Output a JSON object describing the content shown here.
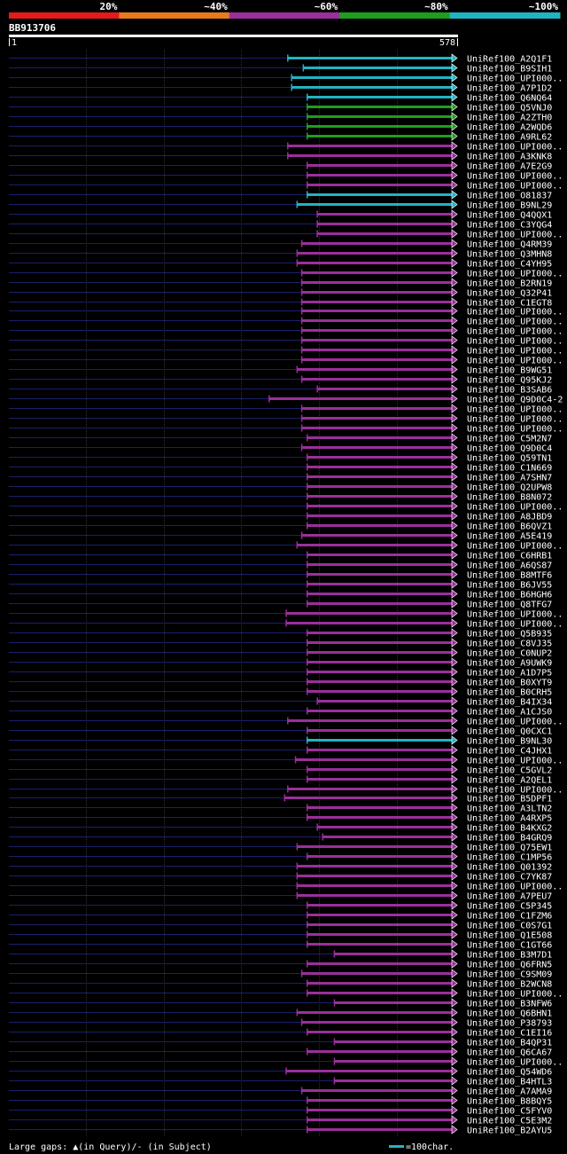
{
  "query_id": "BB913706",
  "scale": {
    "start": "1",
    "end": "578"
  },
  "identity_legend": {
    "labels": [
      "20%",
      "~40%",
      "~60%",
      "~80%",
      "~100%"
    ],
    "colors": [
      "#e41a1c",
      "#e87a1e",
      "#9b2f9b",
      "#1e9e1e",
      "#22b3c3"
    ]
  },
  "footer": {
    "gaps_text": "Large gaps: ▲(in Query)/- (in Subject)",
    "scale_text": "=100char."
  },
  "chart_data": {
    "type": "alignment",
    "query_length": 578,
    "x_range": [
      1,
      578
    ],
    "hits": [
      {
        "name": "UniRef100_A2Q1F1",
        "start": 360,
        "end": 578,
        "identity": "~100%",
        "gaps": []
      },
      {
        "name": "UniRef100_B9SIH1",
        "start": 380,
        "end": 578,
        "identity": "~100%",
        "gaps": []
      },
      {
        "name": "UniRef100_UPI000..",
        "start": 365,
        "end": 578,
        "identity": "~100%",
        "gaps": []
      },
      {
        "name": "UniRef100_A7P1D2",
        "start": 365,
        "end": 578,
        "identity": "~100%",
        "gaps": []
      },
      {
        "name": "UniRef100_Q6NQ64",
        "start": 385,
        "end": 578,
        "identity": "~100%",
        "gaps": []
      },
      {
        "name": "UniRef100_Q5VNJ0",
        "start": 385,
        "end": 578,
        "identity": "~80%",
        "gaps": []
      },
      {
        "name": "UniRef100_A2ZTH0",
        "start": 385,
        "end": 578,
        "identity": "~80%",
        "gaps": []
      },
      {
        "name": "UniRef100_A2WQD6",
        "start": 385,
        "end": 578,
        "identity": "~80%",
        "gaps": []
      },
      {
        "name": "UniRef100_A9RL62",
        "start": 385,
        "end": 578,
        "identity": "~80%",
        "gaps": []
      },
      {
        "name": "UniRef100_UPI000..",
        "start": 360,
        "end": 578,
        "identity": "~60%",
        "gaps": []
      },
      {
        "name": "UniRef100_A3KNK8",
        "start": 360,
        "end": 578,
        "identity": "~60%",
        "gaps": []
      },
      {
        "name": "UniRef100_A7E2G9",
        "start": 385,
        "end": 578,
        "identity": "~60%",
        "gaps": []
      },
      {
        "name": "UniRef100_UPI000..",
        "start": 385,
        "end": 578,
        "identity": "~60%",
        "gaps": []
      },
      {
        "name": "UniRef100_UPI000..",
        "start": 385,
        "end": 578,
        "identity": "~60%",
        "gaps": []
      },
      {
        "name": "UniRef100_O81837",
        "start": 385,
        "end": 578,
        "identity": "~100%",
        "gaps": []
      },
      {
        "name": "UniRef100_B9NL29",
        "start": 372,
        "end": 578,
        "identity": "~100%",
        "gaps": []
      },
      {
        "name": "UniRef100_Q4QQX1",
        "start": 398,
        "end": 578,
        "identity": "~60%",
        "gaps": []
      },
      {
        "name": "UniRef100_C3YQG4",
        "start": 398,
        "end": 578,
        "identity": "~60%",
        "gaps": []
      },
      {
        "name": "UniRef100_UPI000..",
        "start": 398,
        "end": 578,
        "identity": "~60%",
        "gaps": []
      },
      {
        "name": "UniRef100_Q4RM39",
        "start": 378,
        "end": 578,
        "identity": "~60%",
        "gaps": []
      },
      {
        "name": "UniRef100_Q3MHN8",
        "start": 372,
        "end": 578,
        "identity": "~60%",
        "gaps": []
      },
      {
        "name": "UniRef100_C4YH95",
        "start": 372,
        "end": 578,
        "identity": "~60%",
        "gaps": []
      },
      {
        "name": "UniRef100_UPI000..",
        "start": 378,
        "end": 578,
        "identity": "~60%",
        "gaps": []
      },
      {
        "name": "UniRef100_B2RN19",
        "start": 378,
        "end": 578,
        "identity": "~60%",
        "gaps": []
      },
      {
        "name": "UniRef100_Q32P41",
        "start": 378,
        "end": 578,
        "identity": "~60%",
        "gaps": []
      },
      {
        "name": "UniRef100_C1EGT8",
        "start": 378,
        "end": 578,
        "identity": "~60%",
        "gaps": []
      },
      {
        "name": "UniRef100_UPI000..",
        "start": 378,
        "end": 578,
        "identity": "~60%",
        "gaps": []
      },
      {
        "name": "UniRef100_UPI000..",
        "start": 378,
        "end": 578,
        "identity": "~60%",
        "gaps": []
      },
      {
        "name": "UniRef100_UPI000..",
        "start": 378,
        "end": 578,
        "identity": "~60%",
        "gaps": []
      },
      {
        "name": "UniRef100_UPI000..",
        "start": 378,
        "end": 578,
        "identity": "~60%",
        "gaps": []
      },
      {
        "name": "UniRef100_UPI000..",
        "start": 378,
        "end": 578,
        "identity": "~60%",
        "gaps": []
      },
      {
        "name": "UniRef100_UPI000..",
        "start": 378,
        "end": 578,
        "identity": "~60%",
        "gaps": []
      },
      {
        "name": "UniRef100_B9WG51",
        "start": 372,
        "end": 578,
        "identity": "~60%",
        "gaps": []
      },
      {
        "name": "UniRef100_Q95KJ2",
        "start": 378,
        "end": 578,
        "identity": "~60%",
        "gaps": []
      },
      {
        "name": "UniRef100_B3SAB6",
        "start": 398,
        "end": 578,
        "identity": "~60%",
        "gaps": []
      },
      {
        "name": "UniRef100_Q9D0C4-2",
        "start": 336,
        "end": 578,
        "identity": "~60%",
        "gaps": []
      },
      {
        "name": "UniRef100_UPI000..",
        "start": 378,
        "end": 578,
        "identity": "~60%",
        "gaps": []
      },
      {
        "name": "UniRef100_UPI000..",
        "start": 378,
        "end": 578,
        "identity": "~60%",
        "gaps": []
      },
      {
        "name": "UniRef100_UPI000..",
        "start": 378,
        "end": 578,
        "identity": "~60%",
        "gaps": []
      },
      {
        "name": "UniRef100_C5M2N7",
        "start": 385,
        "end": 578,
        "identity": "~60%",
        "gaps": []
      },
      {
        "name": "UniRef100_Q9D0C4",
        "start": 378,
        "end": 578,
        "identity": "~60%",
        "gaps": []
      },
      {
        "name": "UniRef100_Q59TN1",
        "start": 385,
        "end": 578,
        "identity": "~60%",
        "gaps": []
      },
      {
        "name": "UniRef100_C1N669",
        "start": 385,
        "end": 578,
        "identity": "~60%",
        "gaps": []
      },
      {
        "name": "UniRef100_A7SHN7",
        "start": 385,
        "end": 578,
        "identity": "~60%",
        "gaps": []
      },
      {
        "name": "UniRef100_Q2UPW8",
        "start": 385,
        "end": 578,
        "identity": "~60%",
        "gaps": []
      },
      {
        "name": "UniRef100_B8N072",
        "start": 385,
        "end": 578,
        "identity": "~60%",
        "gaps": []
      },
      {
        "name": "UniRef100_UPI000..",
        "start": 385,
        "end": 578,
        "identity": "~60%",
        "gaps": []
      },
      {
        "name": "UniRef100_A8JBD9",
        "start": 385,
        "end": 578,
        "identity": "~60%",
        "gaps": []
      },
      {
        "name": "UniRef100_B6QVZ1",
        "start": 385,
        "end": 578,
        "identity": "~60%",
        "gaps": []
      },
      {
        "name": "UniRef100_A5E419",
        "start": 378,
        "end": 578,
        "identity": "~60%",
        "gaps": []
      },
      {
        "name": "UniRef100_UPI000..",
        "start": 372,
        "end": 578,
        "identity": "~60%",
        "gaps": []
      },
      {
        "name": "UniRef100_C6HRB1",
        "start": 385,
        "end": 578,
        "identity": "~60%",
        "gaps": []
      },
      {
        "name": "UniRef100_A6QS87",
        "start": 385,
        "end": 578,
        "identity": "~60%",
        "gaps": []
      },
      {
        "name": "UniRef100_B8MTF6",
        "start": 385,
        "end": 578,
        "identity": "~60%",
        "gaps": []
      },
      {
        "name": "UniRef100_B6JV55",
        "start": 385,
        "end": 578,
        "identity": "~60%",
        "gaps": []
      },
      {
        "name": "UniRef100_B6HGH6",
        "start": 385,
        "end": 578,
        "identity": "~60%",
        "gaps": []
      },
      {
        "name": "UniRef100_Q8TFG7",
        "start": 385,
        "end": 578,
        "identity": "~60%",
        "gaps": []
      },
      {
        "name": "UniRef100_UPI000..",
        "start": 358,
        "end": 578,
        "identity": "~60%",
        "gaps": []
      },
      {
        "name": "UniRef100_UPI000..",
        "start": 358,
        "end": 578,
        "identity": "~60%",
        "gaps": []
      },
      {
        "name": "UniRef100_Q5B935",
        "start": 385,
        "end": 578,
        "identity": "~60%",
        "gaps": []
      },
      {
        "name": "UniRef100_C8VJ35",
        "start": 385,
        "end": 578,
        "identity": "~60%",
        "gaps": []
      },
      {
        "name": "UniRef100_C0NUP2",
        "start": 385,
        "end": 578,
        "identity": "~60%",
        "gaps": []
      },
      {
        "name": "UniRef100_A9UWK9",
        "start": 385,
        "end": 578,
        "identity": "~60%",
        "gaps": []
      },
      {
        "name": "UniRef100_A1D7P5",
        "start": 385,
        "end": 578,
        "identity": "~60%",
        "gaps": []
      },
      {
        "name": "UniRef100_B0XYT9",
        "start": 385,
        "end": 578,
        "identity": "~60%",
        "gaps": []
      },
      {
        "name": "UniRef100_B0CRH5",
        "start": 385,
        "end": 578,
        "identity": "~60%",
        "gaps": []
      },
      {
        "name": "UniRef100_B4IX34",
        "start": 398,
        "end": 578,
        "identity": "~60%",
        "gaps": []
      },
      {
        "name": "UniRef100_A1CJS0",
        "start": 385,
        "end": 578,
        "identity": "~60%",
        "gaps": []
      },
      {
        "name": "UniRef100_UPI000..",
        "start": 360,
        "end": 578,
        "identity": "~60%",
        "gaps": []
      },
      {
        "name": "UniRef100_Q0CXC1",
        "start": 385,
        "end": 578,
        "identity": "~60%",
        "gaps": []
      },
      {
        "name": "UniRef100_B9NL30",
        "start": 385,
        "end": 578,
        "identity": "~100%",
        "gaps": []
      },
      {
        "name": "UniRef100_C4JHX1",
        "start": 385,
        "end": 578,
        "identity": "~60%",
        "gaps": []
      },
      {
        "name": "UniRef100_UPI000..",
        "start": 370,
        "end": 578,
        "identity": "~60%",
        "gaps": []
      },
      {
        "name": "UniRef100_C5GVL2",
        "start": 385,
        "end": 578,
        "identity": "~60%",
        "gaps": []
      },
      {
        "name": "UniRef100_A2QEL1",
        "start": 385,
        "end": 578,
        "identity": "~60%",
        "gaps": []
      },
      {
        "name": "UniRef100_UPI000..",
        "start": 360,
        "end": 578,
        "identity": "~60%",
        "gaps": []
      },
      {
        "name": "UniRef100_B5DPF1",
        "start": 356,
        "end": 578,
        "identity": "~60%",
        "gaps": []
      },
      {
        "name": "UniRef100_A3LTN2",
        "start": 385,
        "end": 578,
        "identity": "~60%",
        "gaps": []
      },
      {
        "name": "UniRef100_A4RXP5",
        "start": 385,
        "end": 578,
        "identity": "~60%",
        "gaps": []
      },
      {
        "name": "UniRef100_B4KXG2",
        "start": 398,
        "end": 578,
        "identity": "~60%",
        "gaps": []
      },
      {
        "name": "UniRef100_B4GRQ9",
        "start": 405,
        "end": 578,
        "identity": "~60%",
        "gaps": []
      },
      {
        "name": "UniRef100_Q75EW1",
        "start": 372,
        "end": 578,
        "identity": "~60%",
        "gaps": []
      },
      {
        "name": "UniRef100_C1MP56",
        "start": 385,
        "end": 578,
        "identity": "~60%",
        "gaps": []
      },
      {
        "name": "UniRef100_Q01392",
        "start": 372,
        "end": 578,
        "identity": "~60%",
        "gaps": []
      },
      {
        "name": "UniRef100_C7YK87",
        "start": 372,
        "end": 578,
        "identity": "~60%",
        "gaps": []
      },
      {
        "name": "UniRef100_UPI000..",
        "start": 372,
        "end": 578,
        "identity": "~60%",
        "gaps": []
      },
      {
        "name": "UniRef100_A7PEU7",
        "start": 372,
        "end": 578,
        "identity": "~60%",
        "gaps": []
      },
      {
        "name": "UniRef100_C5P345",
        "start": 385,
        "end": 578,
        "identity": "~60%",
        "gaps": []
      },
      {
        "name": "UniRef100_C1FZM6",
        "start": 385,
        "end": 578,
        "identity": "~60%",
        "gaps": []
      },
      {
        "name": "UniRef100_C0S7G1",
        "start": 385,
        "end": 578,
        "identity": "~60%",
        "gaps": []
      },
      {
        "name": "UniRef100_Q1E508",
        "start": 385,
        "end": 578,
        "identity": "~60%",
        "gaps": []
      },
      {
        "name": "UniRef100_C1GT66",
        "start": 385,
        "end": 578,
        "identity": "~60%",
        "gaps": []
      },
      {
        "name": "UniRef100_B3M7D1",
        "start": 420,
        "end": 578,
        "identity": "~60%",
        "gaps": []
      },
      {
        "name": "UniRef100_Q6FRN5",
        "start": 385,
        "end": 578,
        "identity": "~60%",
        "gaps": []
      },
      {
        "name": "UniRef100_C9SM09",
        "start": 378,
        "end": 578,
        "identity": "~60%",
        "gaps": []
      },
      {
        "name": "UniRef100_B2WCN8",
        "start": 385,
        "end": 578,
        "identity": "~60%",
        "gaps": []
      },
      {
        "name": "UniRef100_UPI000..",
        "start": 385,
        "end": 578,
        "identity": "~60%",
        "gaps": []
      },
      {
        "name": "UniRef100_B3NFW6",
        "start": 420,
        "end": 578,
        "identity": "~60%",
        "gaps": []
      },
      {
        "name": "UniRef100_Q6BHN1",
        "start": 372,
        "end": 578,
        "identity": "~60%",
        "gaps": []
      },
      {
        "name": "UniRef100_P38793",
        "start": 378,
        "end": 578,
        "identity": "~60%",
        "gaps": []
      },
      {
        "name": "UniRef100_C1EI16",
        "start": 385,
        "end": 578,
        "identity": "~60%",
        "gaps": []
      },
      {
        "name": "UniRef100_B4QP31",
        "start": 420,
        "end": 578,
        "identity": "~60%",
        "gaps": []
      },
      {
        "name": "UniRef100_Q6CA67",
        "start": 385,
        "end": 578,
        "identity": "~60%",
        "gaps": []
      },
      {
        "name": "UniRef100_UPI000..",
        "start": 420,
        "end": 578,
        "identity": "~60%",
        "gaps": []
      },
      {
        "name": "UniRef100_Q54WD6",
        "start": 358,
        "end": 578,
        "identity": "~60%",
        "gaps": []
      },
      {
        "name": "UniRef100_B4HTL3",
        "start": 420,
        "end": 578,
        "identity": "~60%",
        "gaps": []
      },
      {
        "name": "UniRef100_A7AMA9",
        "start": 378,
        "end": 578,
        "identity": "~60%",
        "gaps": []
      },
      {
        "name": "UniRef100_B8BQY5",
        "start": 385,
        "end": 578,
        "identity": "~60%",
        "gaps": []
      },
      {
        "name": "UniRef100_C5FYV0",
        "start": 385,
        "end": 578,
        "identity": "~60%",
        "gaps": []
      },
      {
        "name": "UniRef100_C5E3M2",
        "start": 385,
        "end": 578,
        "identity": "~60%",
        "gaps": []
      },
      {
        "name": "UniRef100_B2AYU5",
        "start": 385,
        "end": 578,
        "identity": "~60%",
        "gaps": []
      }
    ]
  }
}
